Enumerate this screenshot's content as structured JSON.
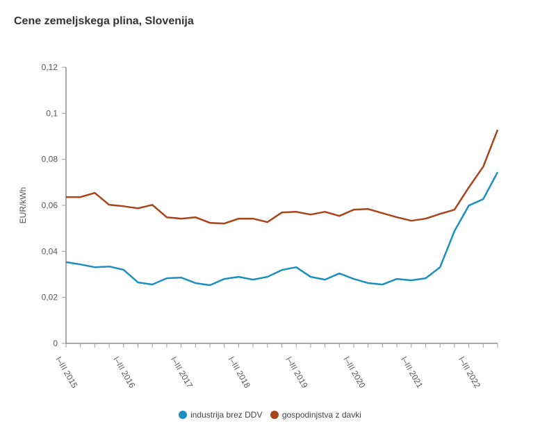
{
  "chart_data": {
    "type": "line",
    "title": "Cene zemeljskega plina, Slovenija",
    "xlabel": "",
    "ylabel": "EUR/kWh",
    "ylim": [
      0,
      0.12
    ],
    "yticks": [
      {
        "value": 0,
        "label": "0"
      },
      {
        "value": 0.02,
        "label": "0,02"
      },
      {
        "value": 0.04,
        "label": "0,04"
      },
      {
        "value": 0.06,
        "label": "0,06"
      },
      {
        "value": 0.08,
        "label": "0,08"
      },
      {
        "value": 0.1,
        "label": "0,1"
      },
      {
        "value": 0.12,
        "label": "0,12"
      }
    ],
    "x": [
      "2015 Q1",
      "2015 Q2",
      "2015 Q3",
      "2015 Q4",
      "2016 Q1",
      "2016 Q2",
      "2016 Q3",
      "2016 Q4",
      "2017 Q1",
      "2017 Q2",
      "2017 Q3",
      "2017 Q4",
      "2018 Q1",
      "2018 Q2",
      "2018 Q3",
      "2018 Q4",
      "2019 Q1",
      "2019 Q2",
      "2019 Q3",
      "2019 Q4",
      "2020 Q1",
      "2020 Q2",
      "2020 Q3",
      "2020 Q4",
      "2021 Q1",
      "2021 Q2",
      "2021 Q3",
      "2021 Q4",
      "2022 Q1",
      "2022 Q2",
      "2022 Q3"
    ],
    "xtick_labels": [
      {
        "index": 0,
        "label": "I–III 2015"
      },
      {
        "index": 4,
        "label": "I–III 2016"
      },
      {
        "index": 8,
        "label": "I–III 2017"
      },
      {
        "index": 12,
        "label": "I–III 2018"
      },
      {
        "index": 16,
        "label": "I–III 2019"
      },
      {
        "index": 20,
        "label": "I–III 2020"
      },
      {
        "index": 24,
        "label": "I–III 2021"
      },
      {
        "index": 28,
        "label": "I–III 2022"
      }
    ],
    "series": [
      {
        "name": "industrija brez DDV",
        "color": "#1b8fc0",
        "values": [
          0.0353,
          0.0343,
          0.0331,
          0.0334,
          0.032,
          0.0265,
          0.0256,
          0.0283,
          0.0286,
          0.0262,
          0.0253,
          0.028,
          0.0289,
          0.0277,
          0.0289,
          0.0319,
          0.0331,
          0.0289,
          0.0277,
          0.0304,
          0.028,
          0.0262,
          0.0256,
          0.028,
          0.0274,
          0.0283,
          0.0331,
          0.0488,
          0.0599,
          0.0627,
          0.0744
        ]
      },
      {
        "name": "gospodinjstva z davki",
        "color": "#a8431a",
        "values": [
          0.0636,
          0.0636,
          0.0654,
          0.0602,
          0.0596,
          0.0587,
          0.0602,
          0.0548,
          0.0542,
          0.0548,
          0.0524,
          0.0521,
          0.0542,
          0.0542,
          0.0527,
          0.0569,
          0.0572,
          0.056,
          0.0572,
          0.0554,
          0.0581,
          0.0584,
          0.0566,
          0.0548,
          0.0533,
          0.0542,
          0.0563,
          0.0581,
          0.0678,
          0.0768,
          0.0928
        ]
      }
    ],
    "grid": false,
    "legend_position": "bottom-center"
  }
}
